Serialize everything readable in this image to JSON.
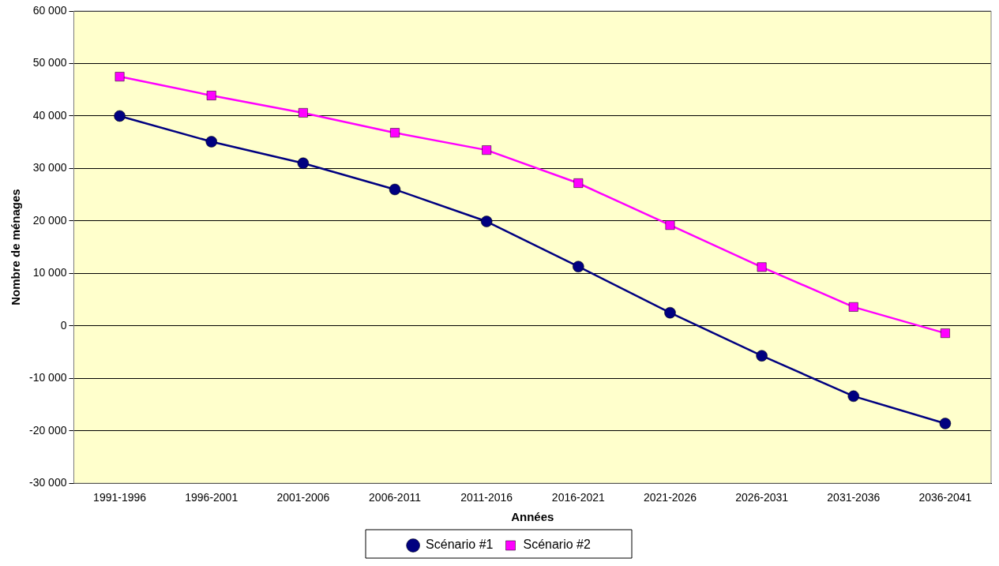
{
  "chart_data": {
    "type": "line",
    "xlabel": "Années",
    "ylabel": "Nombre de ménages",
    "categories": [
      "1991-1996",
      "1996-2001",
      "2001-2006",
      "2006-2011",
      "2011-2016",
      "2016-2021",
      "2021-2026",
      "2026-2031",
      "2031-2036",
      "2036-2041"
    ],
    "series": [
      {
        "name": "Scénario #1",
        "color": "#000080",
        "marker": "circle",
        "values": [
          40000,
          35100,
          31000,
          26000,
          19900,
          11300,
          2500,
          -5700,
          -13400,
          -18600
        ]
      },
      {
        "name": "Scénario #2",
        "color": "#ff00ff",
        "marker": "square",
        "values": [
          47500,
          43900,
          40600,
          36800,
          33500,
          27200,
          19200,
          11200,
          3600,
          -1400
        ]
      }
    ],
    "ylim": [
      -30000,
      60000
    ],
    "yticks": [
      {
        "value": -30000,
        "label": "-30 000"
      },
      {
        "value": -20000,
        "label": "-20 000"
      },
      {
        "value": -10000,
        "label": "-10 000"
      },
      0,
      {
        "value": 10000,
        "label": "10 000"
      },
      {
        "value": 20000,
        "label": "20 000"
      },
      {
        "value": 30000,
        "label": "30 000"
      },
      {
        "value": 40000,
        "label": "40 000"
      },
      {
        "value": 50000,
        "label": "50 000"
      },
      {
        "value": 60000,
        "label": "60 000"
      }
    ],
    "grid": "y",
    "legend": "bottom",
    "line_style": "solid"
  }
}
